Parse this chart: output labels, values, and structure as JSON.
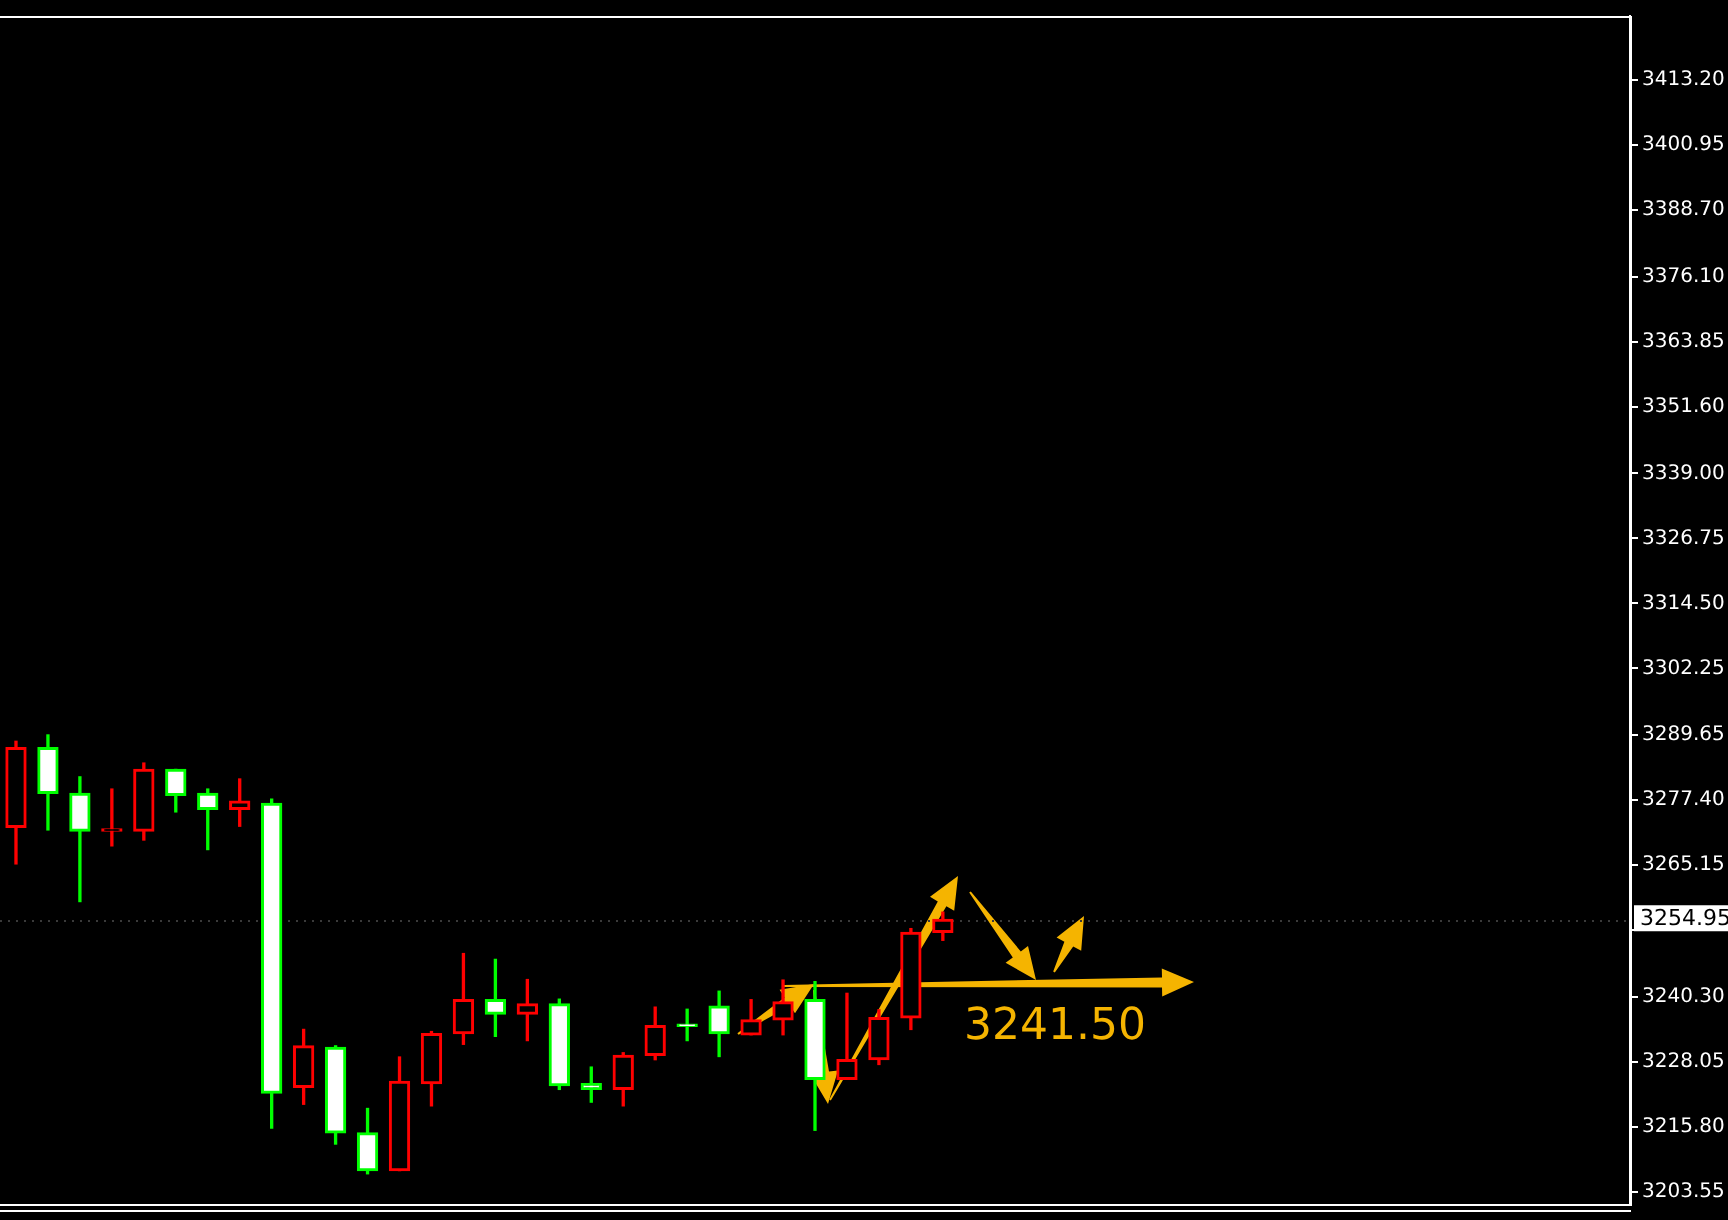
{
  "chart_data": {
    "type": "candlestick",
    "categories": [
      null,
      null,
      null,
      null,
      null,
      null,
      null,
      null,
      null,
      null,
      null,
      null,
      null,
      null,
      null,
      null,
      null,
      null,
      null,
      null,
      null,
      null,
      null,
      null,
      null,
      null,
      null,
      null,
      null,
      null,
      null,
      null,
      null,
      null,
      null,
      null,
      null,
      null,
      null,
      null,
      null,
      null,
      null,
      null,
      null,
      null,
      null,
      null,
      null,
      null,
      null
    ],
    "ohlc": [
      [
        3272.3,
        3288.5,
        3265.4,
        3287.3
      ],
      [
        3287.3,
        3289.7,
        3271.8,
        3278.7
      ],
      [
        3278.7,
        3281.8,
        3258.3,
        3271.6
      ],
      [
        3271.6,
        3279.5,
        3268.8,
        3271.7
      ],
      [
        3271.6,
        3284.4,
        3269.9,
        3283.2
      ],
      [
        3283.2,
        3283.2,
        3275.2,
        3278.3
      ],
      [
        3278.7,
        3279.5,
        3268.1,
        3275.7
      ],
      [
        3275.7,
        3281.4,
        3272.5,
        3277.2
      ],
      [
        3276.8,
        3277.6,
        3215.6,
        3222.2
      ],
      [
        3223.3,
        3234.2,
        3220.1,
        3231.1
      ],
      [
        3230.8,
        3231.1,
        3212.6,
        3214.7
      ],
      [
        3214.7,
        3219.3,
        3207.0,
        3207.6
      ],
      [
        3207.6,
        3229.0,
        3207.6,
        3224.4
      ],
      [
        3224.0,
        3233.8,
        3219.8,
        3233.4
      ],
      [
        3233.4,
        3248.5,
        3231.4,
        3239.8
      ],
      [
        3239.8,
        3247.4,
        3232.9,
        3237.1
      ],
      [
        3237.1,
        3243.6,
        3232.1,
        3239.0
      ],
      [
        3239.0,
        3239.9,
        3222.9,
        3223.6
      ],
      [
        3224.0,
        3227.1,
        3220.5,
        3222.9
      ],
      [
        3222.9,
        3229.8,
        3219.8,
        3229.3
      ],
      [
        3229.3,
        3238.4,
        3228.5,
        3234.9
      ],
      [
        3234.9,
        3238.0,
        3232.1,
        3234.8
      ],
      [
        3238.6,
        3241.4,
        3229.1,
        3233.4
      ],
      [
        3233.2,
        3239.8,
        3233.2,
        3236.0
      ],
      [
        3236.0,
        3243.5,
        3233.2,
        3239.4
      ],
      [
        3239.8,
        3243.2,
        3215.2,
        3224.8
      ],
      [
        3224.8,
        3241.0,
        3224.8,
        3228.5
      ],
      [
        3228.5,
        3237.9,
        3227.6,
        3236.4
      ],
      [
        3236.4,
        3253.2,
        3234.2,
        3252.5
      ],
      [
        3252.5,
        3256.3,
        3251.0,
        3254.95
      ],
      null,
      null,
      null,
      null,
      null,
      null,
      null,
      null,
      null,
      null,
      null,
      null,
      null,
      null,
      null,
      null,
      null,
      null,
      null,
      null,
      null
    ],
    "colors": [
      "#ff0000",
      "#00ff00",
      "#00ff00",
      "#ff0000",
      "#ff0000",
      "#00ff00",
      "#00ff00",
      "#ff0000",
      "#00ff00",
      "#ff0000",
      "#00ff00",
      "#00ff00",
      "#ff0000",
      "#ff0000",
      "#ff0000",
      "#00ff00",
      "#ff0000",
      "#00ff00",
      "#00ff00",
      "#ff0000",
      "#ff0000",
      "#00ff00",
      "#00ff00",
      "#ff0000",
      "#ff0000",
      "#00ff00",
      "#ff0000",
      "#ff0000",
      "#ff0000",
      "#ff0000",
      null,
      null,
      null,
      null,
      null,
      null,
      null,
      null,
      null,
      null,
      null,
      null,
      null,
      null,
      null,
      null,
      null,
      null,
      null,
      null,
      null
    ],
    "ylim": [
      3201.3,
      3425.2
    ],
    "yticks": [
      {
        "value": 3413.2,
        "label": "3413.20"
      },
      {
        "value": 3400.95,
        "label": "3400.95"
      },
      {
        "value": 3388.7,
        "label": "3388.70"
      },
      {
        "value": 3376.1,
        "label": "3376.10"
      },
      {
        "value": 3363.85,
        "label": "3363.85"
      },
      {
        "value": 3351.6,
        "label": "3351.60"
      },
      {
        "value": 3339,
        "label": "3339.00"
      },
      {
        "value": 3326.75,
        "label": "3326.75"
      },
      {
        "value": 3314.5,
        "label": "3314.50"
      },
      {
        "value": 3302.25,
        "label": "3302.25"
      },
      {
        "value": 3289.65,
        "label": "3289.65"
      },
      {
        "value": 3277.4,
        "label": "3277.40"
      },
      {
        "value": 3265.15,
        "label": "3265.15"
      },
      {
        "value": 3252.9,
        "label": null
      },
      {
        "value": 3240.3,
        "label": "3240.30"
      },
      {
        "value": 3228.05,
        "label": "3228.05"
      },
      {
        "value": 3215.8,
        "label": "3215.80"
      },
      {
        "value": 3203.55,
        "label": "3203.55"
      }
    ],
    "tick_labels": "y",
    "grid": false,
    "legend": false,
    "ref_lines": [
      {
        "axis": "y",
        "value": 3254.95,
        "label": "3254.95",
        "color": "#3a3a3a",
        "line_style": "dotted"
      }
    ],
    "annotations": [
      "3241.50"
    ]
  }
}
